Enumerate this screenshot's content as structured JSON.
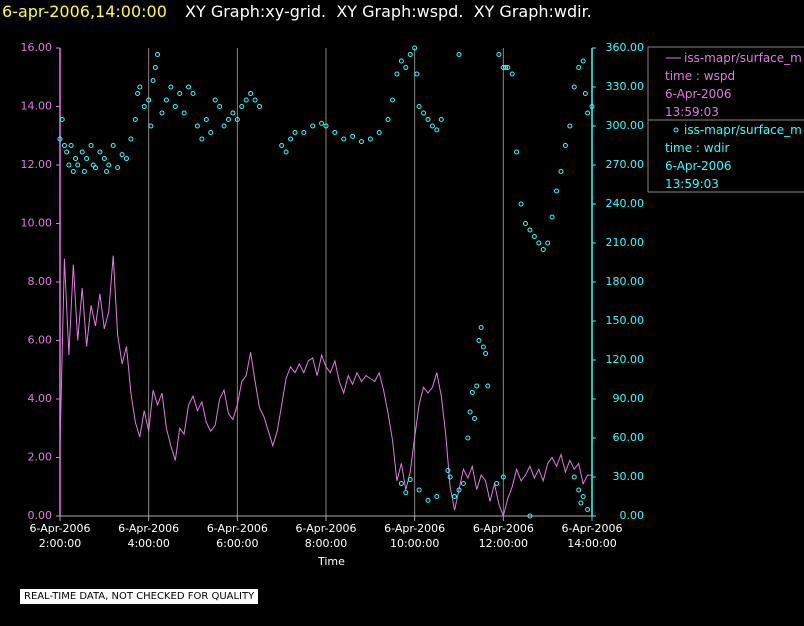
{
  "chart_data": {
    "type": "line+scatter",
    "timestamp": "6-apr-2006,14:00:00",
    "title": "XY Graph:xy-grid.  XY Graph:wspd.  XY Graph:wdir.",
    "xlabel": "Time",
    "note": "REAL-TIME DATA, NOT CHECKED FOR QUALITY",
    "xlim": [
      2,
      14
    ],
    "xticks": [
      {
        "value": 2,
        "label": "6-Apr-2006\n2:00:00"
      },
      {
        "value": 4,
        "label": "6-Apr-2006\n4:00:00"
      },
      {
        "value": 6,
        "label": "6-Apr-2006\n6:00:00"
      },
      {
        "value": 8,
        "label": "6-Apr-2006\n8:00:00"
      },
      {
        "value": 10,
        "label": "6-Apr-2006\n10:00:00"
      },
      {
        "value": 12,
        "label": "6-Apr-2006\n12:00:00"
      },
      {
        "value": 14,
        "label": "6-Apr-2006\n14:00:00"
      }
    ],
    "ylim": [
      0,
      16
    ],
    "yticks": [
      {
        "value": 0,
        "label": "0.00"
      },
      {
        "value": 2,
        "label": "2.00"
      },
      {
        "value": 4,
        "label": "4.00"
      },
      {
        "value": 6,
        "label": "6.00"
      },
      {
        "value": 8,
        "label": "8.00"
      },
      {
        "value": 10,
        "label": "10.00"
      },
      {
        "value": 12,
        "label": "12.00"
      },
      {
        "value": 14,
        "label": "14.00"
      },
      {
        "value": 16,
        "label": "16.00"
      }
    ],
    "y2lim": [
      0,
      360
    ],
    "y2ticks": [
      {
        "value": 0,
        "label": "0.00"
      },
      {
        "value": 30,
        "label": "30.00"
      },
      {
        "value": 60,
        "label": "60.00"
      },
      {
        "value": 90,
        "label": "90.00"
      },
      {
        "value": 120,
        "label": "120.00"
      },
      {
        "value": 150,
        "label": "150.00"
      },
      {
        "value": 180,
        "label": "180.00"
      },
      {
        "value": 210,
        "label": "210.00"
      },
      {
        "value": 240,
        "label": "240.00"
      },
      {
        "value": 270,
        "label": "270.00"
      },
      {
        "value": 300,
        "label": "300.00"
      },
      {
        "value": 330,
        "label": "330.00"
      },
      {
        "value": 360,
        "label": "360.00"
      }
    ],
    "grid": true,
    "series": [
      {
        "name": "iss-mapr/surface_m",
        "type": "line",
        "axis": "y",
        "color": "#e07be0",
        "legend_lines": [
          "time : wspd",
          "6-Apr-2006",
          "13:59:03"
        ],
        "x": [
          2.0,
          2.1,
          2.2,
          2.3,
          2.4,
          2.5,
          2.6,
          2.7,
          2.8,
          2.9,
          3.0,
          3.1,
          3.2,
          3.3,
          3.4,
          3.5,
          3.6,
          3.7,
          3.8,
          3.9,
          4.0,
          4.1,
          4.2,
          4.3,
          4.4,
          4.5,
          4.6,
          4.7,
          4.8,
          4.9,
          5.0,
          5.1,
          5.2,
          5.3,
          5.4,
          5.5,
          5.6,
          5.7,
          5.8,
          5.9,
          6.0,
          6.1,
          6.2,
          6.3,
          6.4,
          6.5,
          6.6,
          6.7,
          6.8,
          6.9,
          7.0,
          7.1,
          7.2,
          7.3,
          7.4,
          7.5,
          7.6,
          7.7,
          7.8,
          7.9,
          8.0,
          8.1,
          8.2,
          8.3,
          8.4,
          8.5,
          8.6,
          8.7,
          8.8,
          8.9,
          9.0,
          9.1,
          9.2,
          9.3,
          9.4,
          9.5,
          9.6,
          9.7,
          9.8,
          9.9,
          10.0,
          10.1,
          10.2,
          10.3,
          10.4,
          10.5,
          10.6,
          10.7,
          10.8,
          10.9,
          11.0,
          11.1,
          11.2,
          11.3,
          11.4,
          11.5,
          11.6,
          11.7,
          11.8,
          11.9,
          12.0,
          12.1,
          12.2,
          12.3,
          12.4,
          12.5,
          12.6,
          12.7,
          12.8,
          12.9,
          13.0,
          13.1,
          13.2,
          13.3,
          13.4,
          13.5,
          13.6,
          13.7,
          13.8,
          13.9,
          14.0
        ],
        "values": [
          2.4,
          8.8,
          5.5,
          8.6,
          6.0,
          7.8,
          5.8,
          7.2,
          6.5,
          7.6,
          6.4,
          7.0,
          8.9,
          6.2,
          5.2,
          5.8,
          4.2,
          3.2,
          2.7,
          3.6,
          2.9,
          4.3,
          3.8,
          4.2,
          3.0,
          2.4,
          1.9,
          3.0,
          2.8,
          3.8,
          4.1,
          3.6,
          3.9,
          3.2,
          2.9,
          3.1,
          4.0,
          4.3,
          3.5,
          3.3,
          3.8,
          4.6,
          4.8,
          5.6,
          4.6,
          3.7,
          3.4,
          2.9,
          2.4,
          2.9,
          3.8,
          4.7,
          5.1,
          4.9,
          5.2,
          4.9,
          5.3,
          5.4,
          4.8,
          5.5,
          5.1,
          4.9,
          5.3,
          4.6,
          4.2,
          4.8,
          4.5,
          4.9,
          4.6,
          4.8,
          4.7,
          4.6,
          4.9,
          4.3,
          3.5,
          2.6,
          1.2,
          1.8,
          0.9,
          1.5,
          2.7,
          3.8,
          4.4,
          4.2,
          4.4,
          4.9,
          4.1,
          2.8,
          1.0,
          0.2,
          0.9,
          1.6,
          1.3,
          1.7,
          0.9,
          1.4,
          1.2,
          0.5,
          1.1,
          0.4,
          0.0,
          0.6,
          1.0,
          1.6,
          1.2,
          1.4,
          1.7,
          1.3,
          1.6,
          1.2,
          1.8,
          2.0,
          1.7,
          2.1,
          1.5,
          1.9,
          1.6,
          1.8,
          1.1,
          1.4,
          1.4
        ]
      },
      {
        "name": "iss-mapr/surface_m",
        "type": "scatter",
        "axis": "y2",
        "color": "#33ffff",
        "legend_lines": [
          "time : wdir",
          "6-Apr-2006",
          "13:59:03"
        ],
        "x": [
          2.0,
          2.05,
          2.1,
          2.15,
          2.2,
          2.25,
          2.3,
          2.35,
          2.4,
          2.5,
          2.55,
          2.6,
          2.7,
          2.75,
          2.8,
          2.9,
          3.0,
          3.05,
          3.1,
          3.2,
          3.3,
          3.4,
          3.5,
          3.6,
          3.7,
          3.75,
          3.8,
          3.9,
          4.0,
          4.05,
          4.1,
          4.15,
          4.2,
          4.3,
          4.4,
          4.5,
          4.6,
          4.7,
          4.8,
          4.9,
          5.0,
          5.1,
          5.2,
          5.3,
          5.4,
          5.5,
          5.6,
          5.7,
          5.8,
          5.9,
          6.0,
          6.1,
          6.2,
          6.3,
          6.4,
          6.5,
          7.0,
          7.1,
          7.2,
          7.3,
          7.5,
          7.7,
          7.9,
          8.0,
          8.2,
          8.4,
          8.6,
          8.8,
          9.0,
          9.2,
          9.4,
          9.5,
          9.6,
          9.7,
          9.8,
          9.9,
          10.0,
          10.05,
          10.1,
          10.2,
          10.3,
          10.4,
          10.5,
          10.6,
          9.7,
          9.8,
          9.9,
          10.1,
          10.3,
          10.5,
          10.75,
          10.8,
          10.9,
          11.0,
          11.0,
          11.1,
          11.2,
          11.25,
          11.3,
          11.35,
          11.4,
          11.45,
          11.5,
          11.55,
          11.6,
          11.65,
          11.9,
          12.0,
          12.05,
          12.1,
          12.2,
          12.3,
          12.4,
          12.5,
          12.6,
          12.7,
          12.8,
          12.9,
          13.0,
          13.1,
          13.2,
          13.3,
          13.4,
          13.5,
          13.6,
          13.7,
          13.8,
          13.85,
          13.9,
          14.0,
          13.6,
          13.7,
          13.75,
          13.8,
          13.9,
          12.0,
          11.85,
          12.6
        ],
        "values": [
          290,
          305,
          285,
          280,
          270,
          285,
          265,
          275,
          270,
          280,
          265,
          275,
          285,
          270,
          268,
          280,
          275,
          265,
          270,
          285,
          268,
          278,
          275,
          290,
          305,
          325,
          330,
          315,
          320,
          300,
          335,
          345,
          355,
          310,
          320,
          330,
          315,
          325,
          310,
          330,
          325,
          300,
          290,
          305,
          295,
          320,
          315,
          300,
          305,
          310,
          305,
          315,
          320,
          325,
          320,
          315,
          285,
          280,
          290,
          295,
          295,
          300,
          302,
          300,
          295,
          290,
          292,
          288,
          290,
          295,
          305,
          320,
          340,
          350,
          345,
          355,
          360,
          340,
          315,
          310,
          305,
          300,
          297,
          305,
          25,
          18,
          28,
          20,
          12,
          15,
          35,
          30,
          15,
          355,
          20,
          25,
          60,
          80,
          95,
          75,
          100,
          135,
          145,
          130,
          125,
          100,
          355,
          345,
          345,
          345,
          340,
          280,
          240,
          225,
          220,
          215,
          210,
          205,
          210,
          230,
          250,
          265,
          285,
          300,
          330,
          345,
          350,
          325,
          310,
          315,
          30,
          20,
          10,
          15,
          5,
          30,
          25,
          0
        ]
      }
    ]
  }
}
